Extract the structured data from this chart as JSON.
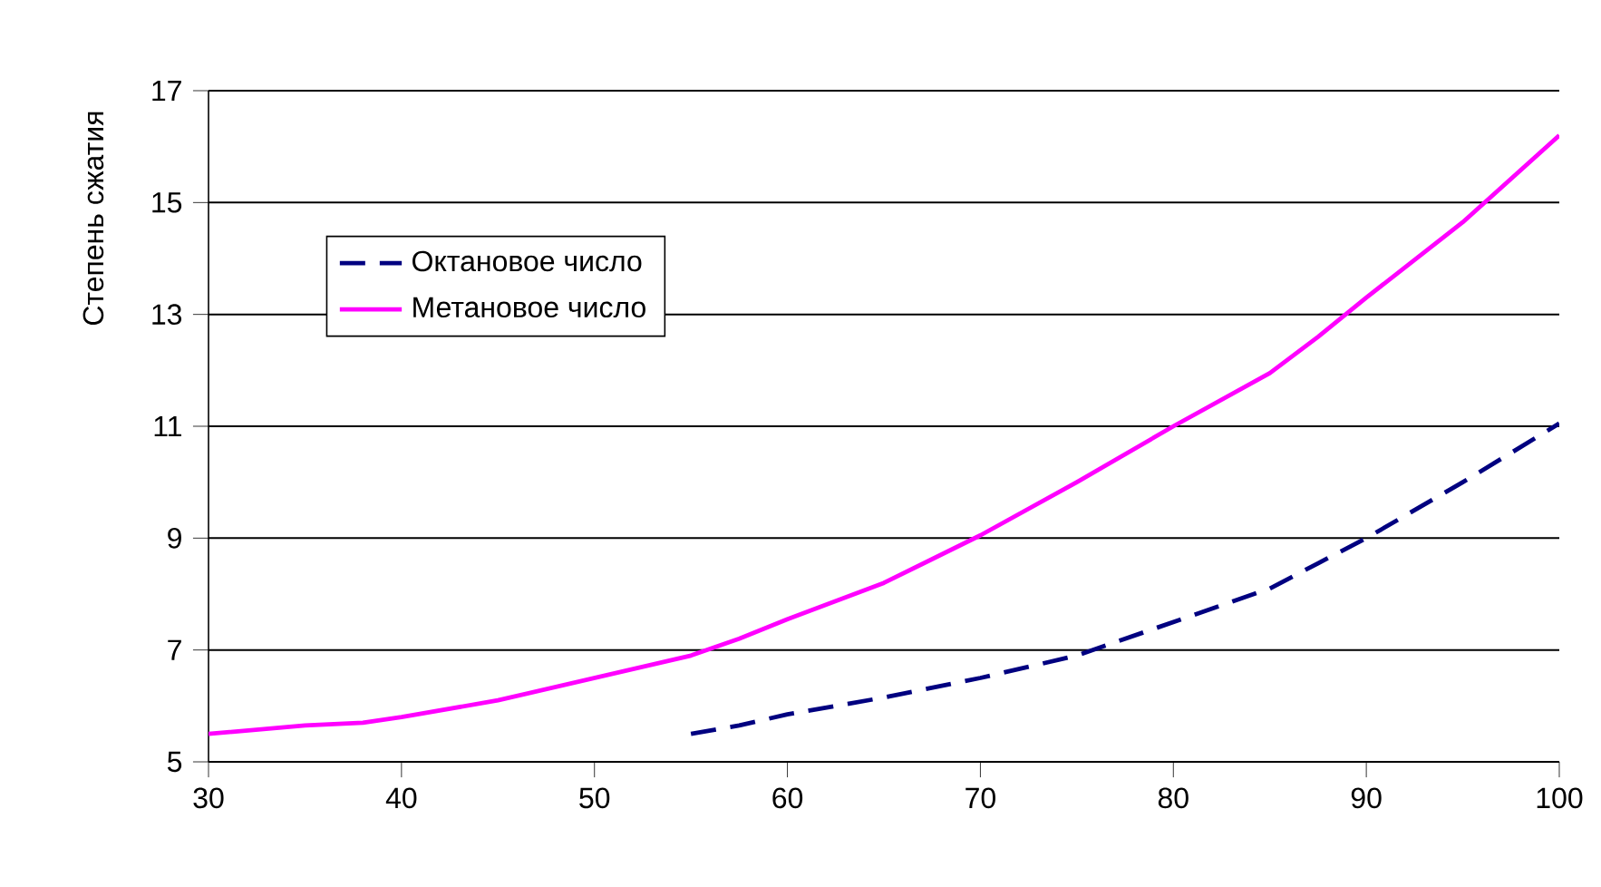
{
  "chart_data": {
    "type": "line",
    "ylabel": "Степень сжатия",
    "xlim": [
      30,
      100
    ],
    "ylim": [
      5,
      17
    ],
    "xticks": [
      30,
      40,
      50,
      60,
      70,
      80,
      90,
      100
    ],
    "yticks": [
      5,
      7,
      9,
      11,
      13,
      15,
      17
    ],
    "grid": "y",
    "legend": "top left",
    "series": [
      {
        "name": "Октановое число",
        "color": "#000080",
        "line_style": "dashed",
        "x": [
          55,
          57.5,
          60,
          62.5,
          65,
          70,
          75,
          80,
          85,
          87.5,
          90,
          95,
          100
        ],
        "values": [
          5.5,
          5.65,
          5.85,
          6.0,
          6.15,
          6.5,
          6.9,
          7.5,
          8.1,
          8.55,
          9.0,
          10.0,
          11.05
        ]
      },
      {
        "name": "Метановое число",
        "color": "#ff00ff",
        "line_style": "solid",
        "x": [
          30,
          35,
          38,
          40,
          45,
          50,
          55,
          57.5,
          60,
          65,
          70,
          75,
          80,
          85,
          87.5,
          90,
          95,
          100
        ],
        "values": [
          5.5,
          5.65,
          5.7,
          5.8,
          6.1,
          6.5,
          6.9,
          7.2,
          7.55,
          8.2,
          9.05,
          10.0,
          11.0,
          11.95,
          12.6,
          13.3,
          14.65,
          16.2
        ]
      }
    ]
  }
}
